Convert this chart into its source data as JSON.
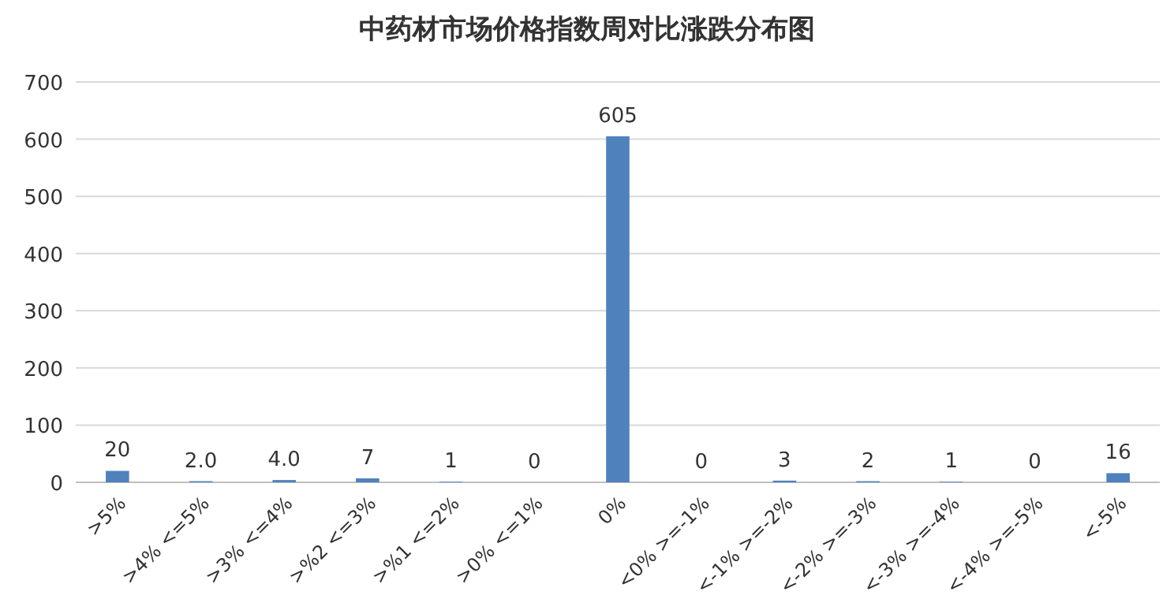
{
  "chart_data": {
    "type": "bar",
    "title": "中药材市场价格指数周对比涨跌分布图",
    "categories": [
      ">5%",
      ">4% <=5%",
      ">3% <=4%",
      ">%2 <=3%",
      ">%1 <=2%",
      ">0% <=1%",
      "0%",
      "<0% >=-1%",
      "<-1% >=-2%",
      "<-2% >=-3%",
      "<-3% >=-4%",
      "<-4% >=-5%",
      "<-5%"
    ],
    "values": [
      20,
      2,
      4,
      7,
      1,
      0,
      605,
      0,
      3,
      2,
      1,
      0,
      16
    ],
    "value_labels": [
      "20",
      "2.0",
      "4.0",
      "7",
      "1",
      "0",
      "605",
      "0",
      "3",
      "2",
      "1",
      "0",
      "16"
    ],
    "color": "#4f81bd",
    "ylim": [
      0,
      700
    ],
    "yticks": [
      0,
      100,
      200,
      300,
      400,
      500,
      600,
      700
    ],
    "grid": "y"
  }
}
